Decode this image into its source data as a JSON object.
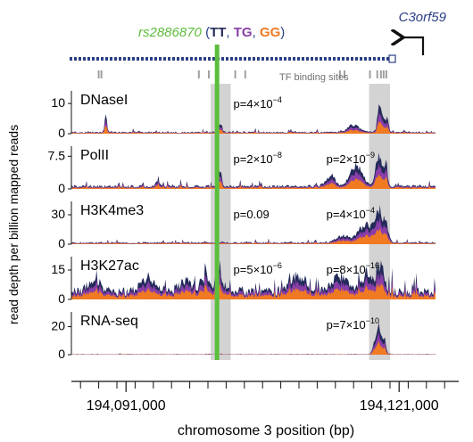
{
  "chart_data": {
    "type": "area",
    "header": {
      "snp": "rs2886870",
      "open_paren": " (",
      "genotypes": [
        {
          "label": "TT",
          "color": "#232a5a"
        },
        {
          "label": "TG",
          "color": "#8a3ea8"
        },
        {
          "label": "GG",
          "color": "#f07a22"
        }
      ],
      "comma": ", ",
      "close_paren": ")",
      "gene": "C3orf59",
      "tf_label": "TF binding sites"
    },
    "colors": {
      "TT": "#232a5a",
      "TG": "#8a3ea8",
      "GG": "#f07a22",
      "snp_line": "#5cbd3c",
      "snp_text": "#5cbd3c",
      "highlight": "#c8c8c8",
      "gene": "#2b3f86",
      "tf_marks": "#a0a0a0"
    },
    "xlabel": "chromosome 3 position (bp)",
    "ylabel": "read depth per billion mapped reads",
    "x_range": [
      194085000,
      194125000
    ],
    "x_ticks": [
      {
        "value": 194091000,
        "label": "194,091,000"
      },
      {
        "value": 194121000,
        "label": "194,121,000"
      }
    ],
    "snp_position": 194101000,
    "highlight_regions": [
      [
        194100300,
        194102500
      ],
      [
        194117700,
        194120000
      ]
    ],
    "tf_sites": [
      194088000,
      194088300,
      194099000,
      194100100,
      194103000,
      194104100,
      194114500,
      194115000,
      194117800,
      194118600,
      194119000,
      194119300,
      194119600
    ],
    "gene_start": 194120000,
    "tracks": [
      {
        "name": "DNaseI",
        "ylim": [
          0,
          13
        ],
        "yticks": [
          {
            "value": 0,
            "label": "0"
          },
          {
            "value": 10,
            "label": "10"
          }
        ],
        "p_labels": [
          {
            "x": 194102800,
            "base": "p=4×10",
            "exp": "−4"
          }
        ],
        "baseline": 0.5,
        "peaks": [
          {
            "x": 194088800,
            "w": 150,
            "h": 8
          },
          {
            "x": 194101300,
            "w": 300,
            "h": 3
          },
          {
            "x": 194116000,
            "w": 900,
            "h": 2.5
          },
          {
            "x": 194118900,
            "w": 350,
            "h": 10
          },
          {
            "x": 194119600,
            "w": 300,
            "h": 5
          }
        ]
      },
      {
        "name": "PolII",
        "ylim": [
          0,
          9
        ],
        "yticks": [
          {
            "value": 0,
            "label": "0"
          },
          {
            "value": 7.5,
            "label": "7.5"
          }
        ],
        "p_labels": [
          {
            "x": 194102800,
            "base": "p=2×10",
            "exp": "−8"
          },
          {
            "x": 194113000,
            "base": "p=2×10",
            "exp": "−9"
          }
        ],
        "baseline": 0.6,
        "peaks": [
          {
            "x": 194101300,
            "w": 300,
            "h": 4
          },
          {
            "x": 194094500,
            "w": 200,
            "h": 2
          },
          {
            "x": 194113500,
            "w": 700,
            "h": 2.5
          },
          {
            "x": 194116300,
            "w": 900,
            "h": 5
          },
          {
            "x": 194118700,
            "w": 450,
            "h": 8
          },
          {
            "x": 194119500,
            "w": 300,
            "h": 5.5
          }
        ]
      },
      {
        "name": "H3K4me3",
        "ylim": [
          0,
          40
        ],
        "yticks": [
          {
            "value": 0,
            "label": "0"
          },
          {
            "value": 30,
            "label": "30"
          }
        ],
        "p_labels": [
          {
            "x": 194102800,
            "base": "p=0.09",
            "exp": ""
          },
          {
            "x": 194113000,
            "base": "p=4×10",
            "exp": "−4"
          }
        ],
        "baseline": 1.5,
        "peaks": [
          {
            "x": 194114800,
            "w": 1000,
            "h": 8
          },
          {
            "x": 194117300,
            "w": 1100,
            "h": 20
          },
          {
            "x": 194118800,
            "w": 600,
            "h": 34
          },
          {
            "x": 194119600,
            "w": 400,
            "h": 16
          }
        ]
      },
      {
        "name": "H3K27ac",
        "ylim": [
          0,
          20
        ],
        "yticks": [
          {
            "value": 0,
            "label": "0"
          },
          {
            "value": 15,
            "label": "15"
          }
        ],
        "p_labels": [
          {
            "x": 194102800,
            "base": "p=5×10",
            "exp": "−6"
          },
          {
            "x": 194113000,
            "base": "p=8×10",
            "exp": "−16"
          }
        ],
        "baseline": 4,
        "peaks": [
          {
            "x": 194087500,
            "w": 900,
            "h": 6
          },
          {
            "x": 194093500,
            "w": 1200,
            "h": 7
          },
          {
            "x": 194097500,
            "w": 900,
            "h": 6
          },
          {
            "x": 194099700,
            "w": 700,
            "h": 9
          },
          {
            "x": 194101200,
            "w": 400,
            "h": 12
          },
          {
            "x": 194109800,
            "w": 1300,
            "h": 8
          },
          {
            "x": 194114500,
            "w": 1200,
            "h": 9
          },
          {
            "x": 194117500,
            "w": 900,
            "h": 10
          },
          {
            "x": 194119000,
            "w": 500,
            "h": 14
          }
        ]
      },
      {
        "name": "RNA-seq",
        "ylim": [
          0,
          28
        ],
        "yticks": [
          {
            "value": 0,
            "label": "0"
          },
          {
            "value": 20,
            "label": "20"
          }
        ],
        "p_labels": [
          {
            "x": 194113000,
            "base": "p=7×10",
            "exp": "−10"
          }
        ],
        "baseline": 0.3,
        "peaks": [
          {
            "x": 194118700,
            "w": 300,
            "h": 22
          },
          {
            "x": 194119300,
            "w": 300,
            "h": 14
          },
          {
            "x": 194118200,
            "w": 250,
            "h": 6
          }
        ]
      }
    ]
  }
}
